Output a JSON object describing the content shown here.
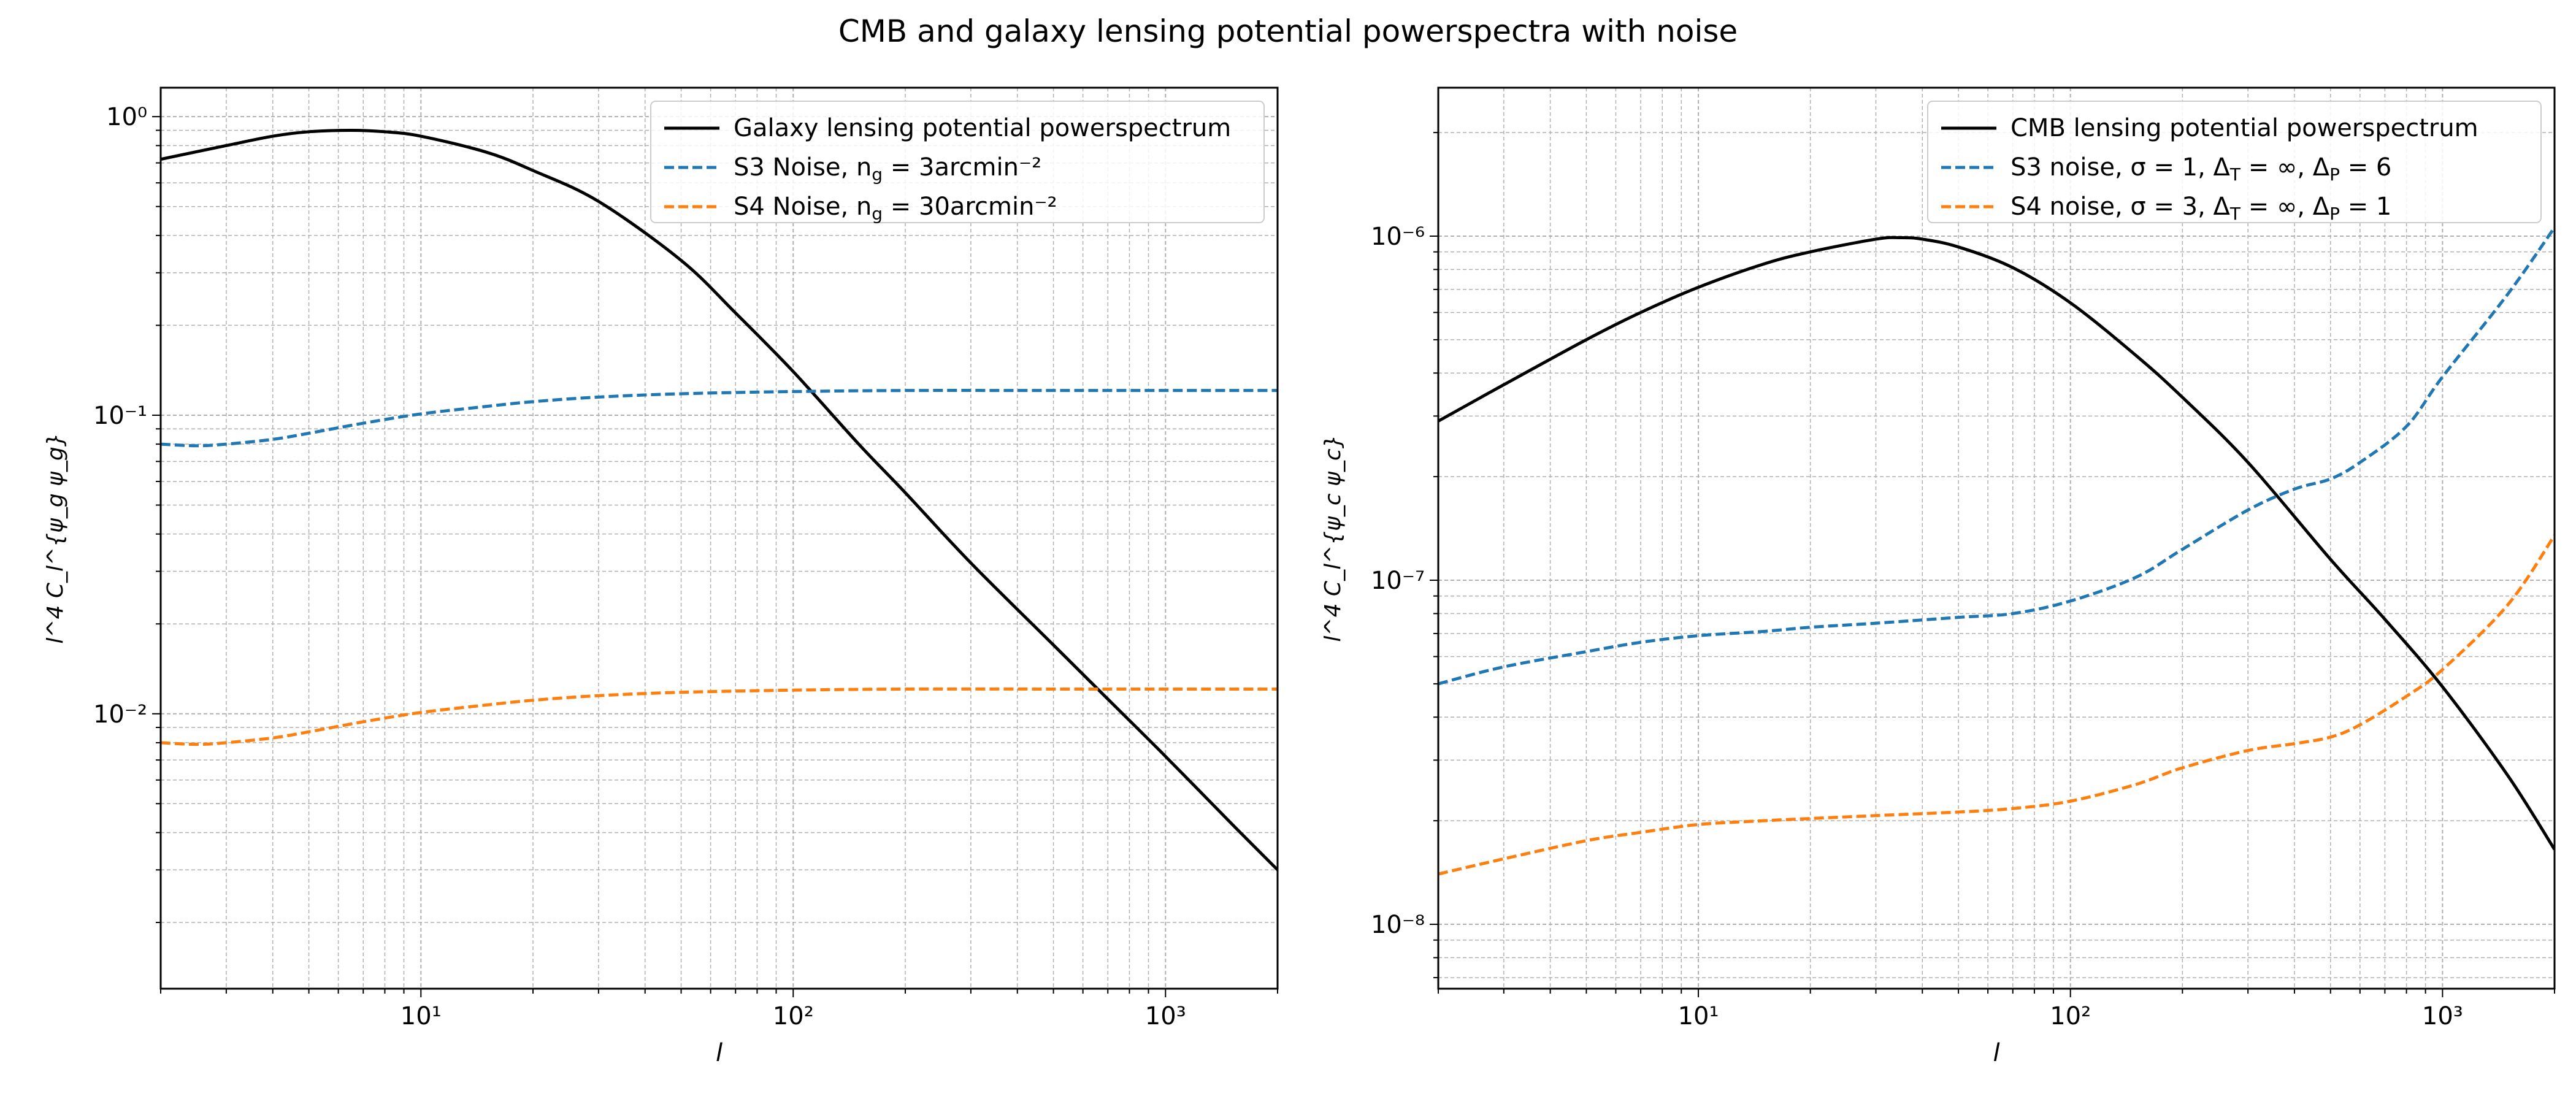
{
  "figure": {
    "title": "CMB and galaxy lensing potential powerspectra with noise"
  },
  "colors": {
    "signal": "#000000",
    "s3": "#1f77b4",
    "s4": "#ff7f0e",
    "grid": "#b0b0b0"
  },
  "chart_data": [
    {
      "type": "line",
      "xscale": "log",
      "yscale": "log",
      "xlim": [
        2,
        2000
      ],
      "ylim": [
        0.0012,
        1.25
      ],
      "xlabel": "l",
      "ylabel": "l^4 C_l^{ψ_g ψ_g}",
      "grid": true,
      "legend_position": "top-right",
      "xticks": [
        {
          "v": 10,
          "label": "10¹"
        },
        {
          "v": 100,
          "label": "10²"
        },
        {
          "v": 1000,
          "label": "10³"
        }
      ],
      "yticks": [
        {
          "v": 1,
          "label": "10⁰"
        },
        {
          "v": 0.1,
          "label": "10⁻¹"
        },
        {
          "v": 0.01,
          "label": "10⁻²"
        }
      ],
      "series": [
        {
          "name": "Galaxy lensing potential powerspectrum",
          "style": "solid",
          "color": "#000000",
          "x": [
            2,
            3,
            4,
            5,
            6.5,
            8,
            10,
            15,
            20,
            30,
            50,
            70,
            100,
            150,
            200,
            300,
            500,
            700,
            1000,
            1500,
            2000
          ],
          "y": [
            0.72,
            0.8,
            0.86,
            0.89,
            0.9,
            0.89,
            0.86,
            0.76,
            0.66,
            0.52,
            0.33,
            0.22,
            0.14,
            0.08,
            0.055,
            0.032,
            0.017,
            0.0112,
            0.0072,
            0.0043,
            0.003
          ]
        },
        {
          "name": "S3 Noise, n_g = 3arcmin⁻²",
          "style": "dashed",
          "color": "#1f77b4",
          "x": [
            2,
            2.5,
            3,
            4,
            5,
            7,
            10,
            15,
            20,
            30,
            50,
            100,
            200,
            500,
            1000,
            2000
          ],
          "y": [
            0.08,
            0.079,
            0.08,
            0.083,
            0.087,
            0.094,
            0.101,
            0.107,
            0.111,
            0.115,
            0.118,
            0.12,
            0.121,
            0.121,
            0.121,
            0.121
          ]
        },
        {
          "name": "S4 Noise, n_g = 30arcmin⁻²",
          "style": "dashed",
          "color": "#ff7f0e",
          "x": [
            2,
            2.5,
            3,
            4,
            5,
            7,
            10,
            15,
            20,
            30,
            50,
            100,
            200,
            500,
            1000,
            2000
          ],
          "y": [
            0.008,
            0.0079,
            0.008,
            0.0083,
            0.0087,
            0.0094,
            0.0101,
            0.0107,
            0.0111,
            0.0115,
            0.0118,
            0.012,
            0.0121,
            0.0121,
            0.0121,
            0.0121
          ]
        }
      ]
    },
    {
      "type": "line",
      "xscale": "log",
      "yscale": "log",
      "xlim": [
        2,
        2000
      ],
      "ylim": [
        6.5e-09,
        2.7e-06
      ],
      "xlabel": "l",
      "ylabel": "l^4 C_l^{ψ_c ψ_c}",
      "grid": true,
      "legend_position": "top-right",
      "xticks": [
        {
          "v": 10,
          "label": "10¹"
        },
        {
          "v": 100,
          "label": "10²"
        },
        {
          "v": 1000,
          "label": "10³"
        }
      ],
      "yticks": [
        {
          "v": 1e-06,
          "label": "10⁻⁶"
        },
        {
          "v": 1e-07,
          "label": "10⁻⁷"
        },
        {
          "v": 1e-08,
          "label": "10⁻⁸"
        }
      ],
      "series": [
        {
          "name": "CMB lensing potential powerspectrum",
          "style": "solid",
          "color": "#000000",
          "x": [
            2,
            3,
            5,
            7,
            10,
            15,
            20,
            30,
            35,
            40,
            50,
            70,
            100,
            150,
            200,
            300,
            500,
            700,
            1000,
            1500,
            2000
          ],
          "y": [
            2.9e-07,
            3.7e-07,
            5e-07,
            6e-07,
            7.1e-07,
            8.3e-07,
            9e-07,
            9.8e-07,
            9.9e-07,
            9.8e-07,
            9.3e-07,
            8.1e-07,
            6.4e-07,
            4.5e-07,
            3.4e-07,
            2.2e-07,
            1.15e-07,
            7.7e-08,
            4.9e-08,
            2.7e-08,
            1.65e-08
          ]
        },
        {
          "name": "S3 noise, σ = 1, Δ_T = ∞, Δ_P = 6",
          "style": "dashed",
          "color": "#1f77b4",
          "x": [
            2,
            3,
            5,
            7,
            10,
            15,
            20,
            30,
            50,
            70,
            100,
            150,
            200,
            300,
            400,
            500,
            600,
            800,
            1000,
            1500,
            2000
          ],
          "y": [
            5e-08,
            5.6e-08,
            6.2e-08,
            6.6e-08,
            6.9e-08,
            7.1e-08,
            7.3e-08,
            7.5e-08,
            7.8e-08,
            8e-08,
            8.7e-08,
            1.02e-07,
            1.23e-07,
            1.6e-07,
            1.84e-07,
            1.97e-07,
            2.2e-07,
            2.8e-07,
            3.9e-07,
            6.8e-07,
            1.06e-06
          ]
        },
        {
          "name": "S4 noise, σ = 3, Δ_T = ∞, Δ_P = 1",
          "style": "dashed",
          "color": "#ff7f0e",
          "x": [
            2,
            3,
            5,
            7,
            10,
            15,
            20,
            30,
            50,
            70,
            100,
            150,
            200,
            300,
            400,
            500,
            600,
            800,
            1000,
            1500,
            2000
          ],
          "y": [
            1.4e-08,
            1.55e-08,
            1.75e-08,
            1.85e-08,
            1.95e-08,
            2e-08,
            2.03e-08,
            2.07e-08,
            2.12e-08,
            2.17e-08,
            2.28e-08,
            2.55e-08,
            2.85e-08,
            3.2e-08,
            3.35e-08,
            3.5e-08,
            3.8e-08,
            4.6e-08,
            5.5e-08,
            8.5e-08,
            1.35e-07
          ]
        }
      ]
    }
  ]
}
